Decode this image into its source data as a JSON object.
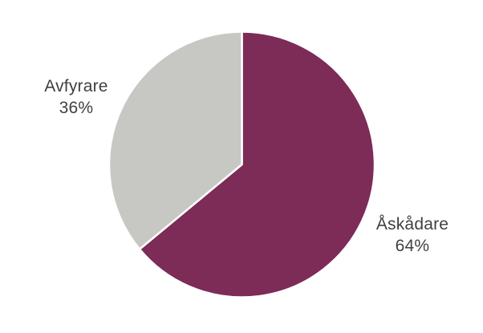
{
  "chart_data": {
    "type": "pie",
    "title": "",
    "categories": [
      "Åskådare",
      "Avfyrare"
    ],
    "values": [
      64,
      36
    ],
    "unit": "%",
    "series_colors": [
      "#7D2B57",
      "#C7C7C3"
    ],
    "separator_color": "#FFFFFF",
    "background_color": "#FFFFFF",
    "label_color": "#404040",
    "start_angle_deg": 0,
    "direction": "clockwise",
    "legend": "none",
    "labels": [
      {
        "name": "Åskådare",
        "pct": "64%"
      },
      {
        "name": "Avfyrare",
        "pct": "36%"
      }
    ]
  }
}
